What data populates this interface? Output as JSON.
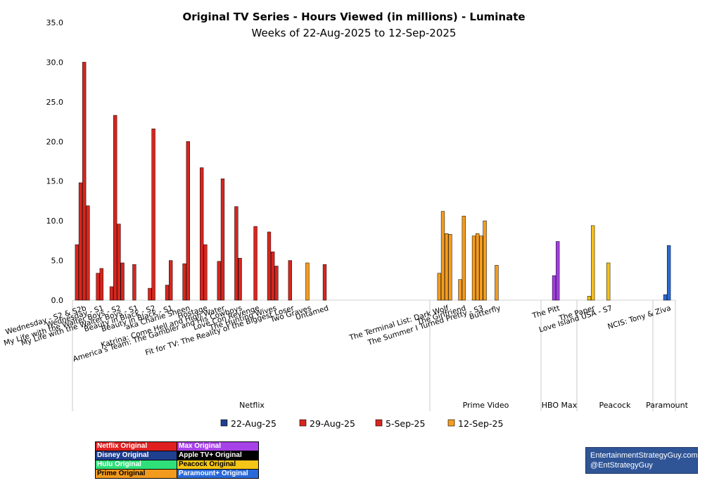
{
  "chart_data": {
    "type": "bar",
    "title": "Original TV Series - Hours Viewed (in millions) - Luminate",
    "subtitle": "Weeks of 22-Aug-2025 to 12-Sep-2025",
    "ylim": [
      0,
      35
    ],
    "yticks": [
      "0.0",
      "5.0",
      "10.0",
      "15.0",
      "20.0",
      "25.0",
      "30.0",
      "35.0"
    ],
    "grid": false,
    "legend_position": "bottom",
    "series_names": [
      "22-Aug-25",
      "29-Aug-25",
      "5-Sep-25",
      "12-Sep-25"
    ],
    "groups": [
      {
        "name": "Netflix",
        "categories": [
          {
            "label": "Wednesday - S2 & S2b",
            "values": [
              7.0,
              14.8,
              30.0,
              11.9
            ],
            "color": "#d7261e"
          },
          {
            "label": "Wednesday - S1",
            "values": [
              null,
              3.4,
              4.0,
              null
            ],
            "color": "#d7261e"
          },
          {
            "label": "My Life with the Walter Boys - S2",
            "values": [
              1.7,
              23.3,
              9.6,
              4.7
            ],
            "color": "#d7261e"
          },
          {
            "label": "My Life with the Walter Boys - S1",
            "values": [
              null,
              4.5,
              null,
              null
            ],
            "color": "#d7261e"
          },
          {
            "label": "Beauty in Black - S2",
            "values": [
              null,
              1.5,
              21.6,
              null
            ],
            "color": "#d7261e"
          },
          {
            "label": "Beauty in Black - S1",
            "values": [
              null,
              1.9,
              5.0,
              null
            ],
            "color": "#d7261e"
          },
          {
            "label": "aka Charlie Sheen",
            "values": [
              null,
              4.6,
              20.0,
              null
            ],
            "color": "#d7261e"
          },
          {
            "label": "Hostage",
            "values": [
              null,
              16.7,
              7.0,
              null
            ],
            "color": "#d7261e"
          },
          {
            "label": "Katrina: Come Hell and High Water",
            "values": [
              null,
              4.9,
              15.3,
              null
            ],
            "color": "#d7261e"
          },
          {
            "label": "America's Team: The Gambler and His Cowboys",
            "values": [
              null,
              11.8,
              5.3,
              null
            ],
            "color": "#d7261e"
          },
          {
            "label": "Love Con Revenge",
            "values": [
              null,
              9.3,
              null,
              null
            ],
            "color": "#d7261e"
          },
          {
            "label": "The Hunting Wives",
            "values": [
              8.6,
              6.1,
              4.3,
              null
            ],
            "color": "#d7261e"
          },
          {
            "label": "Fit for TV: The Reality of the Biggest Loser",
            "values": [
              null,
              5.0,
              null,
              null
            ],
            "color": "#d7261e"
          },
          {
            "label": "Two Graves",
            "values": [
              null,
              4.7,
              null,
              null
            ],
            "color": "#f39c1f"
          },
          {
            "label": "Untamed",
            "values": [
              null,
              4.5,
              null,
              null
            ],
            "color": "#d7261e"
          }
        ]
      },
      {
        "name": "Prime Video",
        "categories": [
          {
            "label": "The Terminal List: Dark Wolf",
            "values": [
              3.4,
              11.2,
              8.4,
              8.3
            ],
            "color": "#f39c1f"
          },
          {
            "label": "The Girlfriend",
            "values": [
              null,
              2.6,
              10.6,
              null
            ],
            "color": "#f39c1f"
          },
          {
            "label": "The Summer I Turned Pretty - S3",
            "values": [
              8.1,
              8.4,
              8.1,
              10.0
            ],
            "color": "#f39c1f"
          },
          {
            "label": "Butterfly",
            "values": [
              null,
              4.4,
              null,
              null
            ],
            "color": "#f39c1f"
          }
        ]
      },
      {
        "name": "HBO Max",
        "categories": [
          {
            "label": "The Pitt",
            "values": [
              null,
              3.1,
              7.4,
              null
            ],
            "color": "#a23fdf"
          }
        ]
      },
      {
        "name": "Peacock",
        "categories": [
          {
            "label": "The Paper",
            "values": [
              null,
              0.5,
              9.4,
              null
            ],
            "color": "#f5c018"
          },
          {
            "label": "Love Island USA - S7",
            "values": [
              null,
              4.7,
              null,
              null
            ],
            "color": "#f5c018"
          }
        ]
      },
      {
        "name": "Paramount",
        "categories": [
          {
            "label": "NCIS: Tony & Ziva",
            "values": [
              null,
              0.7,
              6.9,
              null
            ],
            "color": "#2a6ad8"
          }
        ]
      }
    ],
    "legend": [
      {
        "label": "22-Aug-25",
        "color": "#1f3f8f"
      },
      {
        "label": "29-Aug-25",
        "color": "#d7261e"
      },
      {
        "label": "5-Sep-25",
        "color": "#d7261e"
      },
      {
        "label": "12-Sep-25",
        "color": "#f39c1f"
      }
    ]
  },
  "key_table": [
    [
      {
        "text": "Netflix Original",
        "bg": "#e02020",
        "fg": "#ffffff"
      },
      {
        "text": "Max Original",
        "bg": "#a742e8",
        "fg": "#ffffff"
      }
    ],
    [
      {
        "text": "Disney Original",
        "bg": "#1f3f8f",
        "fg": "#ffffff"
      },
      {
        "text": "Apple TV+ Original",
        "bg": "#000000",
        "fg": "#ffffff"
      }
    ],
    [
      {
        "text": "Hulu Original",
        "bg": "#2fe07a",
        "fg": "#ffffff"
      },
      {
        "text": "Peacock Original",
        "bg": "#f5c518",
        "fg": "#000000"
      }
    ],
    [
      {
        "text": "Prime Original",
        "bg": "#f29a1d",
        "fg": "#000000"
      },
      {
        "text": "Paramount+ Original",
        "bg": "#2a6ad8",
        "fg": "#ffffff"
      }
    ]
  ],
  "branding": {
    "line1": "EntertainmentStrategyGuy.com",
    "line2": "@EntStrategyGuy"
  }
}
